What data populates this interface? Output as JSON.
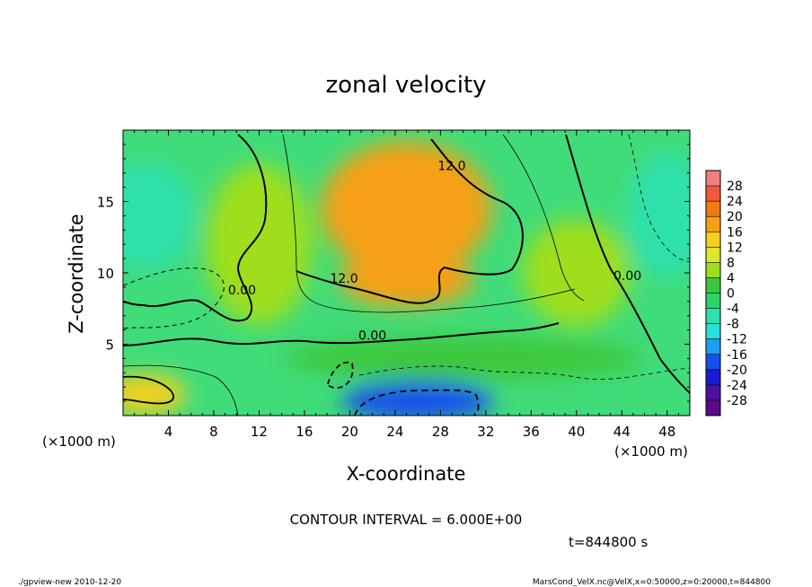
{
  "chart_data": {
    "type": "heatmap",
    "title": "zonal velocity",
    "xlabel": "X-coordinate",
    "ylabel": "Z-coordinate",
    "x_unit_label": "(×1000 m)",
    "y_unit_label": "(×1000 m)",
    "xlim": [
      0,
      50
    ],
    "ylim": [
      0,
      20
    ],
    "x_ticks": [
      4,
      8,
      12,
      16,
      20,
      24,
      28,
      32,
      36,
      40,
      44,
      48
    ],
    "y_ticks": [
      5,
      10,
      15
    ],
    "contour_labels": [
      {
        "text": "12.0",
        "x": 29,
        "y": 17.2
      },
      {
        "text": "12.0",
        "x": 19.5,
        "y": 9.3
      },
      {
        "text": "0.00",
        "x": 10.5,
        "y": 8.5
      },
      {
        "text": "0.00",
        "x": 22,
        "y": 5.3
      },
      {
        "text": "0.00",
        "x": 44.5,
        "y": 9.5
      }
    ],
    "contour_interval_text": "CONTOUR INTERVAL = 6.000E+00",
    "time_text": "t=844800 s",
    "colorbar": {
      "levels": [
        28,
        24,
        20,
        16,
        12,
        8,
        4,
        0,
        -4,
        -8,
        -12,
        -16,
        -20,
        -24,
        -28
      ],
      "colors": [
        "#f08080",
        "#f05a3a",
        "#f07a14",
        "#f5a014",
        "#f7cf1c",
        "#dde82a",
        "#9ede1e",
        "#3cc83c",
        "#2ed26a",
        "#2ee0aa",
        "#28e0dc",
        "#1aa0ee",
        "#1650ec",
        "#1a1ad2",
        "#50109e",
        "#5a0a8a"
      ]
    },
    "fields": [
      {
        "x": 25,
        "y": 14.5,
        "value": 16
      },
      {
        "x": 25,
        "y": 9.5,
        "value": 16
      },
      {
        "x": 26,
        "y": 1,
        "value": -20
      },
      {
        "x": 2,
        "y": 14,
        "value": -6
      },
      {
        "x": 48,
        "y": 14,
        "value": -6
      },
      {
        "x": 2,
        "y": 1.5,
        "value": 12
      },
      {
        "x": 40,
        "y": 10,
        "value": 6
      },
      {
        "x": 12,
        "y": 12,
        "value": 6
      },
      {
        "x": 30,
        "y": 4,
        "value": 0
      }
    ]
  },
  "footer": {
    "left": "./gpview-new  2010-12-20",
    "right": "MarsCond_VelX.nc@VelX,x=0:50000,z=0:20000,t=844800"
  }
}
